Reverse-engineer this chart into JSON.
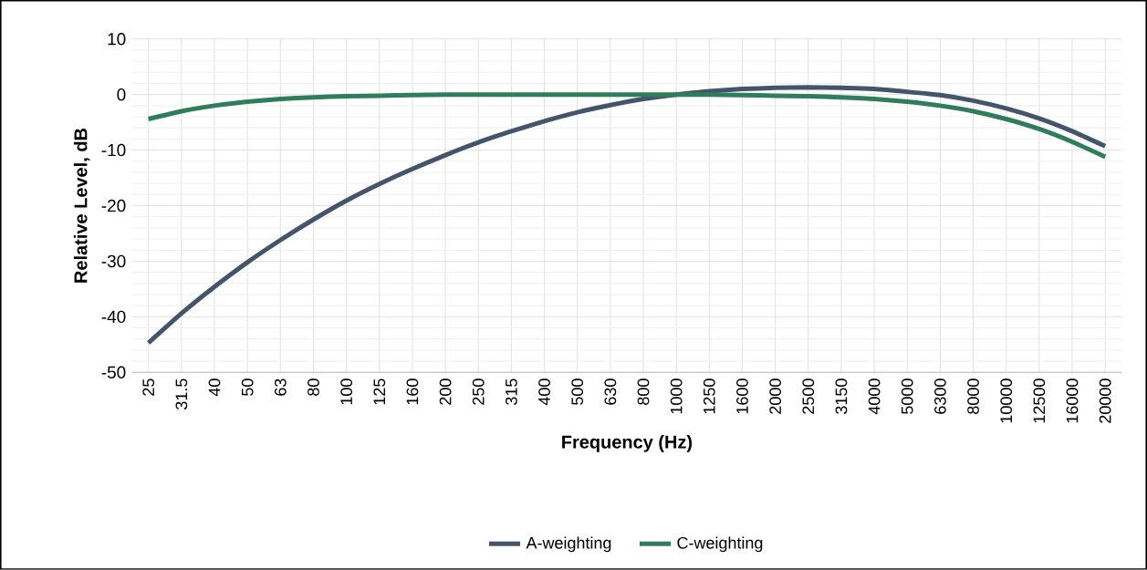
{
  "chart_data": {
    "type": "line",
    "xlabel": "Frequency (Hz)",
    "ylabel": "Relative Level, dB",
    "categories": [
      "25",
      "31.5",
      "40",
      "50",
      "63",
      "80",
      "100",
      "125",
      "160",
      "200",
      "250",
      "315",
      "400",
      "500",
      "630",
      "800",
      "1000",
      "1250",
      "1600",
      "2000",
      "2500",
      "3150",
      "4000",
      "5000",
      "6300",
      "8000",
      "10000",
      "12500",
      "16000",
      "20000"
    ],
    "series": [
      {
        "name": "A-weighting",
        "color": "#44546a",
        "values": [
          -44.7,
          -39.4,
          -34.6,
          -30.2,
          -26.2,
          -22.5,
          -19.1,
          -16.1,
          -13.4,
          -10.9,
          -8.6,
          -6.6,
          -4.8,
          -3.2,
          -1.9,
          -0.8,
          0,
          0.6,
          1.0,
          1.2,
          1.3,
          1.2,
          1.0,
          0.5,
          -0.1,
          -1.1,
          -2.5,
          -4.3,
          -6.6,
          -9.3
        ]
      },
      {
        "name": "C-weighting",
        "color": "#2e7d5b",
        "values": [
          -4.4,
          -3.0,
          -2.0,
          -1.3,
          -0.8,
          -0.5,
          -0.3,
          -0.2,
          -0.1,
          0,
          0,
          0,
          0,
          0,
          0,
          0,
          0,
          0,
          -0.1,
          -0.2,
          -0.3,
          -0.5,
          -0.8,
          -1.3,
          -2.0,
          -3.0,
          -4.4,
          -6.2,
          -8.5,
          -11.2
        ]
      }
    ],
    "ylim": [
      -50,
      10
    ],
    "yticks": [
      -50,
      -40,
      -30,
      -20,
      -10,
      0,
      10
    ],
    "grid": true,
    "legend": "bottom",
    "marker": "none",
    "line_style": "solid"
  }
}
